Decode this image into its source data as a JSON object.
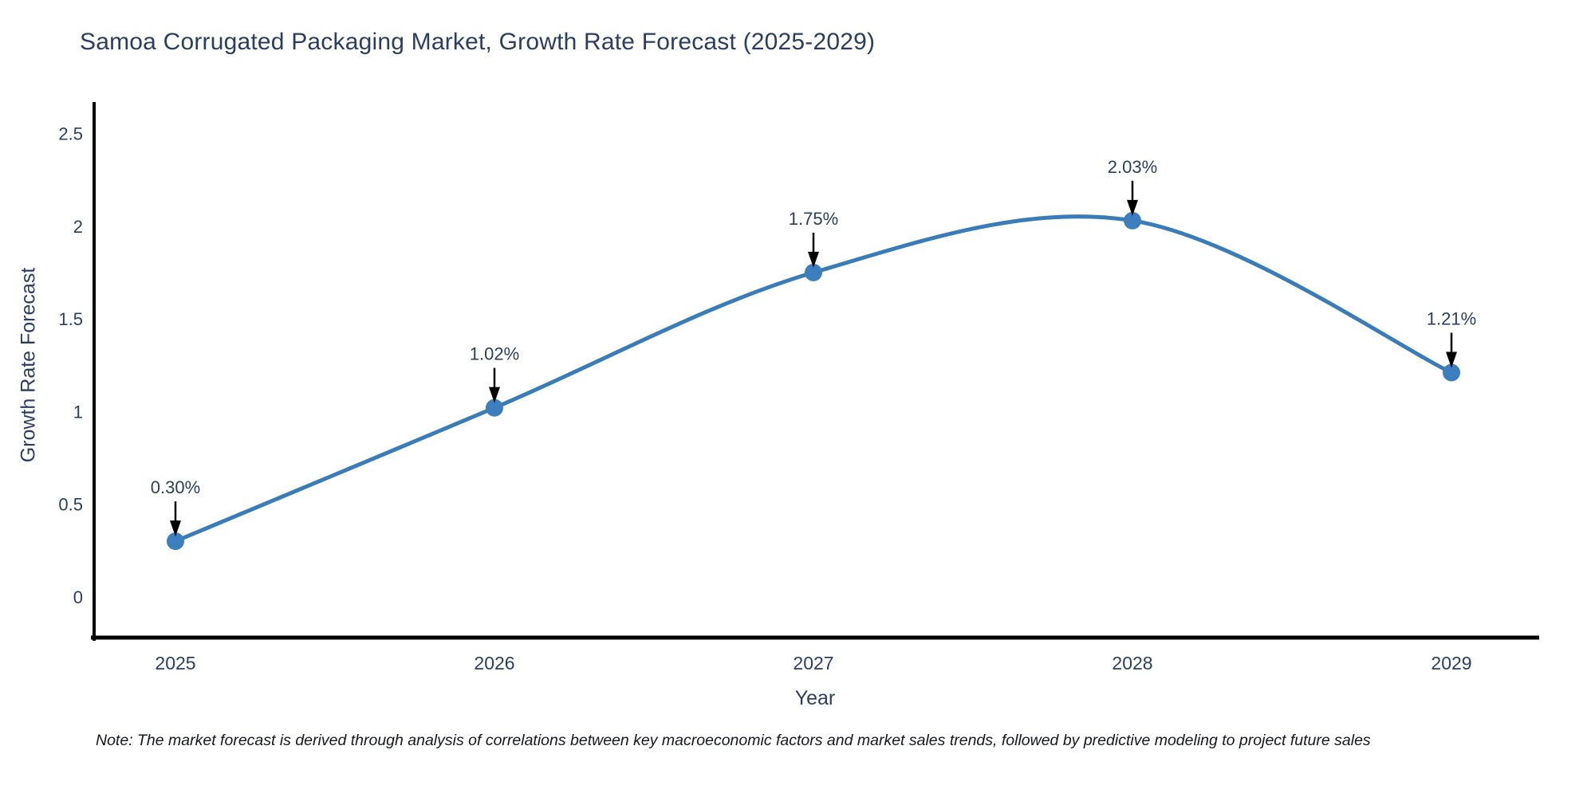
{
  "note": "Note: The market forecast is derived through analysis of correlations between key macroeconomic factors and market sales trends, followed by predictive modeling to project future sales",
  "chart_data": {
    "type": "line",
    "title": "Samoa Corrugated Packaging Market, Growth Rate Forecast (2025-2029)",
    "xlabel": "Year",
    "ylabel": "Growth Rate Forecast",
    "categories": [
      "2025",
      "2026",
      "2027",
      "2028",
      "2029"
    ],
    "values": [
      0.3,
      1.02,
      1.75,
      2.03,
      1.21
    ],
    "point_labels": [
      "0.30%",
      "1.02%",
      "1.75%",
      "2.03%",
      "1.21%"
    ],
    "yticks": [
      0,
      0.5,
      1,
      1.5,
      2,
      2.5
    ],
    "ytick_labels": [
      "0",
      "0.5",
      "1",
      "1.5",
      "2",
      "2.5"
    ],
    "ylim": [
      -0.22,
      2.67
    ],
    "line_shape": "spline",
    "grid": false,
    "legend": "none",
    "colors": {
      "line": "#3a7cb8",
      "marker": "#3d7fbe",
      "axis": "#000000",
      "tick_text": "#2a3f5f",
      "annotation_text": "#2a3f5f",
      "annotation_arrow": "#000000",
      "note_text": "#15181d",
      "background": "#ffffff"
    }
  }
}
